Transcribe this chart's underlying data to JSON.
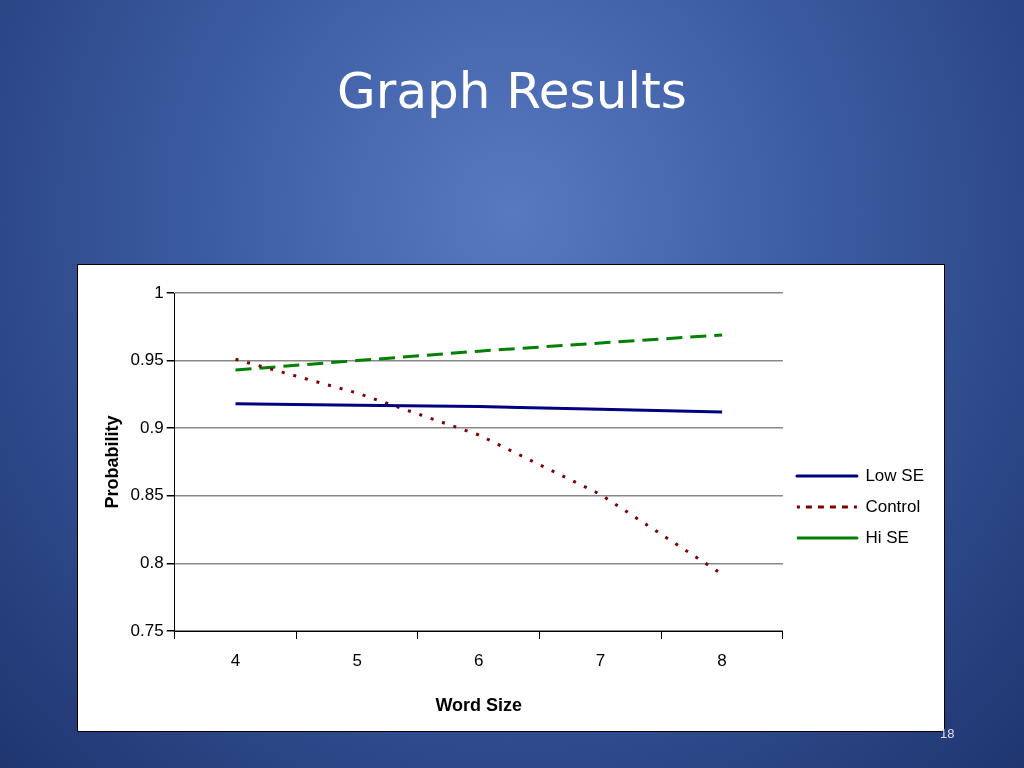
{
  "chart_data": {
    "type": "line",
    "title": "Graph Results",
    "xlabel": "Word Size",
    "ylabel": "Probability",
    "categories": [
      "4",
      "5",
      "6",
      "7",
      "8"
    ],
    "series": [
      {
        "name": "Low SE",
        "color": "#000080",
        "line_style": "solid",
        "values": [
          0.918,
          0.917,
          0.916,
          0.914,
          0.912
        ]
      },
      {
        "name": "Control",
        "color": "#800000",
        "line_style": "dotted",
        "values": [
          0.951,
          0.926,
          0.895,
          0.851,
          0.792
        ]
      },
      {
        "name": "Hi SE",
        "color": "#008000",
        "line_style": "dashed",
        "values": [
          0.943,
          0.95,
          0.957,
          0.963,
          0.969
        ]
      }
    ],
    "ylim": [
      0.75,
      1
    ],
    "yticks": [
      0.75,
      0.8,
      0.85,
      0.9,
      0.95,
      1
    ],
    "grid": "y",
    "legend": "right",
    "marker": "none",
    "annotations": [
      "18"
    ]
  }
}
